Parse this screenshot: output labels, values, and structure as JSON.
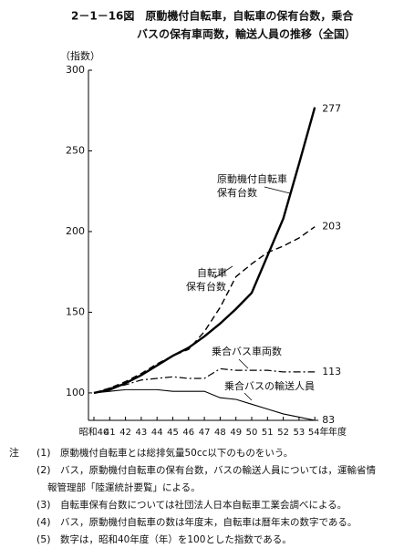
{
  "chart_data": {
    "type": "line",
    "title_lines": [
      "2－1－16図　原動機付自転車，自転車の保有台数，乗合",
      "バスの保有車両数，輸送人員の推移（全国）"
    ],
    "y_label": "（指数）",
    "x_label": "年度",
    "categories": [
      "昭和40",
      "41",
      "42",
      "43",
      "44",
      "45",
      "46",
      "47",
      "48",
      "49",
      "50",
      "51",
      "52",
      "53",
      "54年"
    ],
    "ylim": [
      83,
      300
    ],
    "yticks": [
      100,
      150,
      200,
      250,
      300
    ],
    "series": [
      {
        "label": [
          "原動機付自転車",
          "保有台数"
        ],
        "style": "solid",
        "color": "#000000",
        "values": [
          100,
          102,
          106,
          111,
          117,
          123,
          128,
          135,
          143,
          152,
          162,
          185,
          208,
          242,
          277
        ],
        "value_labels": {
          "14": "277"
        }
      },
      {
        "label": [
          "自転車",
          "保有台数"
        ],
        "style": "dashed",
        "color": "#000000",
        "values": [
          100,
          103,
          107,
          112,
          118,
          123,
          127,
          138,
          153,
          172,
          180,
          187,
          191,
          196,
          203
        ],
        "value_labels": {
          "14": "203"
        }
      },
      {
        "label": [
          "乗合バス車両数"
        ],
        "style": "dashdot",
        "color": "#000000",
        "values": [
          100,
          103,
          105,
          108,
          109,
          110,
          109,
          109,
          115,
          114,
          114,
          114,
          113,
          113,
          113
        ],
        "value_labels": {
          "14": "113"
        }
      },
      {
        "label": [
          "乗合バスの輸送人員"
        ],
        "style": "thin",
        "color": "#000000",
        "values": [
          100,
          101,
          102,
          102,
          102,
          101,
          101,
          101,
          97,
          96,
          93,
          90,
          87,
          85,
          83
        ],
        "value_labels": {
          "14": "83"
        }
      }
    ]
  },
  "notes_head": "注",
  "notes": [
    {
      "marker": "(1)",
      "lines": [
        "原動機付自転車とは総排気量50cc以下のものをいう。"
      ]
    },
    {
      "marker": "(2)",
      "lines": [
        "バス，原動機付自転車の保有台数，バスの輸送人員については，運輸省情",
        "報管理部「陸運統計要覧」による。"
      ]
    },
    {
      "marker": "(3)",
      "lines": [
        "自転車保有台数については社団法人日本自転車工業会調べによる。"
      ]
    },
    {
      "marker": "(4)",
      "lines": [
        "バス，原動機付自転車の数は年度末，自転車は暦年末の数字である。"
      ]
    },
    {
      "marker": "(5)",
      "lines": [
        "数字は，昭和40年度（年）を100とした指数である。"
      ]
    }
  ]
}
